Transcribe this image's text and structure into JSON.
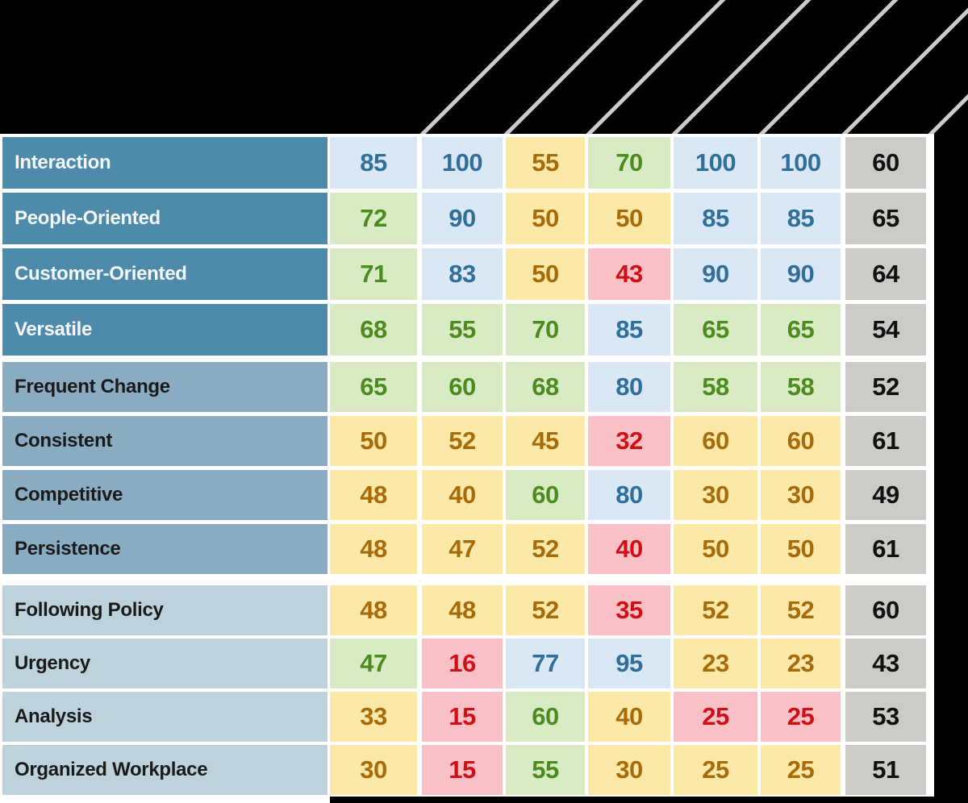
{
  "colors": {
    "page_bg": "#000000",
    "table_bg": "#ffffff",
    "diagonal_line": "#cdccc8",
    "label_bg_group0": "#4e8aa9",
    "label_bg_group1": "#89acc3",
    "label_bg_group2": "#bdd2db",
    "label_text_group0": "#f4f8fa",
    "label_text_dark": "#1a1a1a",
    "cell_blue_bg": "#d9e8f4",
    "cell_blue_text": "#2f6f99",
    "cell_green_bg": "#d9ebc5",
    "cell_green_text": "#4d8b1f",
    "cell_yellow_bg": "#fce9a7",
    "cell_yellow_text": "#a86b0a",
    "cell_red_bg": "#f9c1c5",
    "cell_red_text": "#d01018",
    "cell_gray_bg": "#cccbc7",
    "cell_gray_text": "#111111"
  },
  "chart_data": {
    "type": "heatmap",
    "title": "",
    "column_count": 7,
    "column_labels_visible": false,
    "row_labels": [
      "Interaction",
      "People-Oriented",
      "Customer-Oriented",
      "Versatile",
      "Frequent Change",
      "Consistent",
      "Competitive",
      "Persistence",
      "Following Policy",
      "Urgency",
      "Analysis",
      "Organized Workplace"
    ],
    "row_group_index": [
      0,
      0,
      0,
      0,
      1,
      1,
      1,
      1,
      2,
      2,
      2,
      2
    ],
    "values": [
      [
        85,
        100,
        55,
        70,
        100,
        100,
        60
      ],
      [
        72,
        90,
        50,
        50,
        85,
        85,
        65
      ],
      [
        71,
        83,
        50,
        43,
        90,
        90,
        64
      ],
      [
        68,
        55,
        70,
        85,
        65,
        65,
        54
      ],
      [
        65,
        60,
        68,
        80,
        58,
        58,
        52
      ],
      [
        50,
        52,
        45,
        32,
        60,
        60,
        61
      ],
      [
        48,
        40,
        60,
        80,
        30,
        30,
        49
      ],
      [
        48,
        47,
        52,
        40,
        50,
        50,
        61
      ],
      [
        48,
        48,
        52,
        35,
        52,
        52,
        60
      ],
      [
        47,
        16,
        77,
        95,
        23,
        23,
        43
      ],
      [
        33,
        15,
        60,
        40,
        25,
        25,
        53
      ],
      [
        30,
        15,
        55,
        30,
        25,
        25,
        51
      ]
    ],
    "cell_colors": [
      [
        "blue",
        "blue",
        "yellow",
        "green",
        "blue",
        "blue",
        "gray"
      ],
      [
        "green",
        "blue",
        "yellow",
        "yellow",
        "blue",
        "blue",
        "gray"
      ],
      [
        "green",
        "blue",
        "yellow",
        "red",
        "blue",
        "blue",
        "gray"
      ],
      [
        "green",
        "green",
        "green",
        "blue",
        "green",
        "green",
        "gray"
      ],
      [
        "green",
        "green",
        "green",
        "blue",
        "green",
        "green",
        "gray"
      ],
      [
        "yellow",
        "yellow",
        "yellow",
        "red",
        "yellow",
        "yellow",
        "gray"
      ],
      [
        "yellow",
        "yellow",
        "green",
        "blue",
        "yellow",
        "yellow",
        "gray"
      ],
      [
        "yellow",
        "yellow",
        "yellow",
        "red",
        "yellow",
        "yellow",
        "gray"
      ],
      [
        "yellow",
        "yellow",
        "yellow",
        "red",
        "yellow",
        "yellow",
        "gray"
      ],
      [
        "green",
        "red",
        "blue",
        "blue",
        "yellow",
        "yellow",
        "gray"
      ],
      [
        "yellow",
        "red",
        "green",
        "yellow",
        "red",
        "red",
        "gray"
      ],
      [
        "yellow",
        "red",
        "green",
        "yellow",
        "yellow",
        "yellow",
        "gray"
      ]
    ]
  }
}
